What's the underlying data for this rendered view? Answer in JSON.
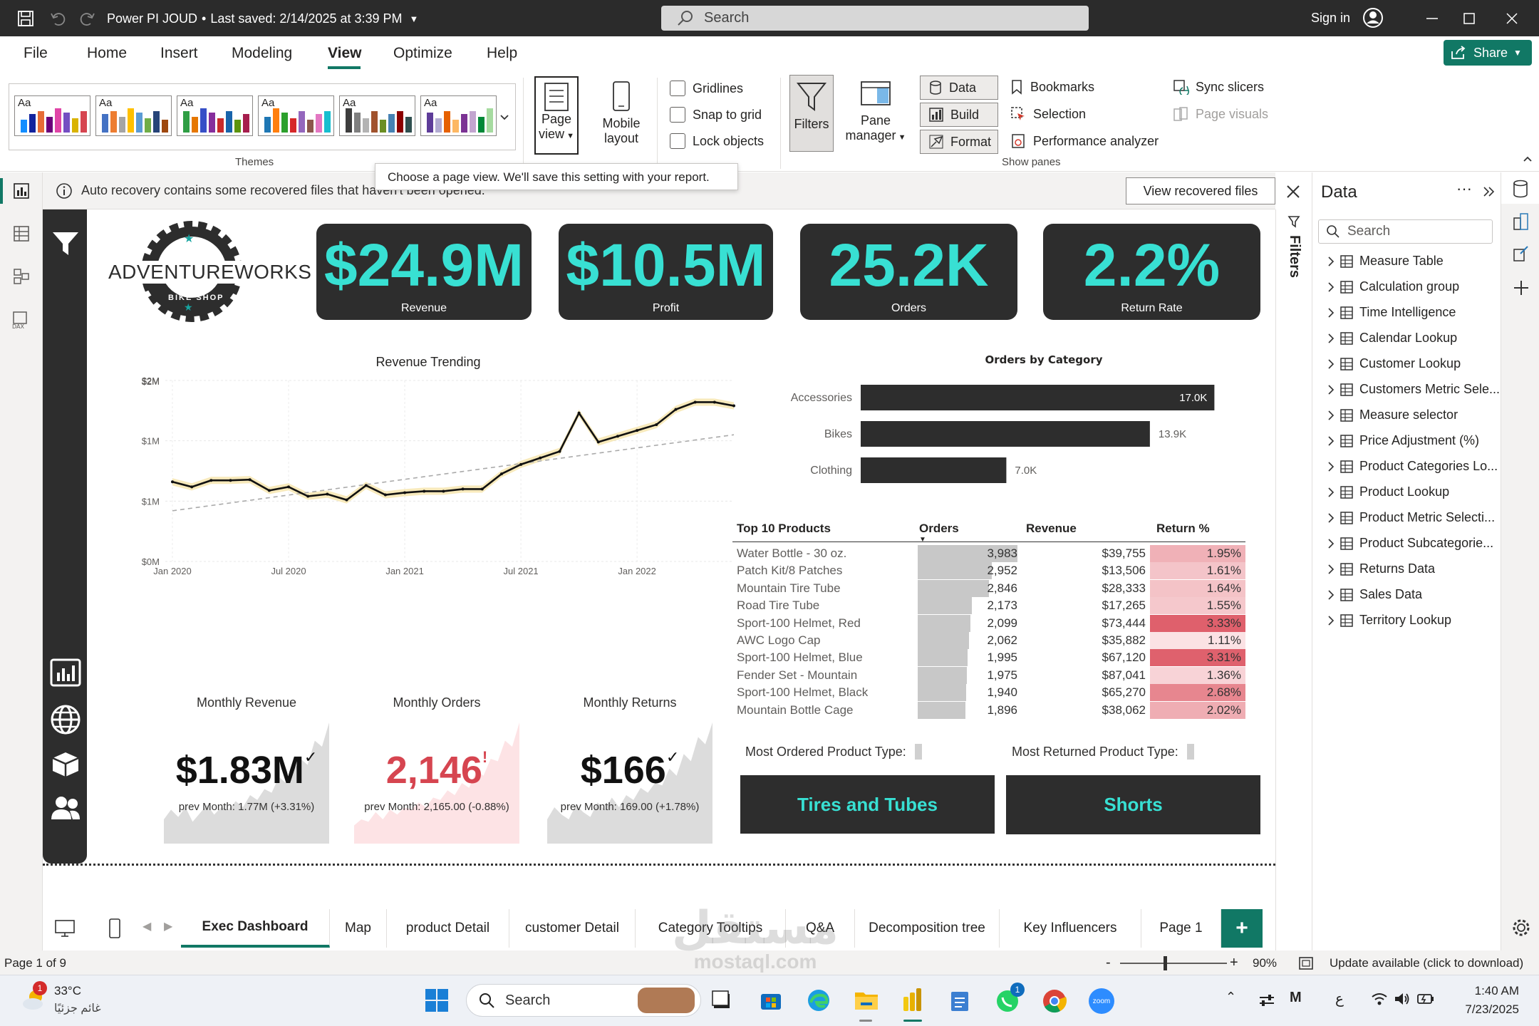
{
  "titlebar": {
    "doc_title": "Power PI JOUD",
    "saved_text": "Last saved: 2/14/2025 at 3:39 PM",
    "search_placeholder": "Search",
    "sign_in": "Sign in"
  },
  "ribbon": {
    "tabs": [
      "File",
      "Home",
      "Insert",
      "Modeling",
      "View",
      "Optimize",
      "Help"
    ],
    "active_tab": "View",
    "share": "Share",
    "theme_sample": "Aa",
    "themes_label": "Themes",
    "page_view_line1": "Page",
    "page_view_line2": "view",
    "mobile_layout_line1": "Mobile",
    "mobile_layout_line2": "layout",
    "gridlines": "Gridlines",
    "snap_to_grid": "Snap to grid",
    "lock_objects": "Lock objects",
    "filters": "Filters",
    "pane_manager_line1": "Pane",
    "pane_manager_line2": "manager",
    "data": "Data",
    "build": "Build",
    "format": "Format",
    "bookmarks": "Bookmarks",
    "selection": "Selection",
    "performance_analyzer": "Performance analyzer",
    "sync_slicers": "Sync slicers",
    "page_visuals": "Page visuals",
    "show_panes_label": "Show panes",
    "tooltip": "Choose a page view. We'll save this setting with your report."
  },
  "notification": {
    "text": "Auto recovery contains some recovered files that haven't been opened.",
    "button": "View recovered files"
  },
  "report": {
    "logo_text": "ADVENTUREWORKS",
    "logo_sub": "BIKE SHOP",
    "kpis": [
      {
        "value": "$24.9M",
        "label": "Revenue"
      },
      {
        "value": "$10.5M",
        "label": "Profit"
      },
      {
        "value": "25.2K",
        "label": "Orders"
      },
      {
        "value": "2.2%",
        "label": "Return Rate"
      }
    ],
    "monthly": [
      {
        "title": "Monthly Revenue",
        "value": "$1.83M",
        "mark": "✓",
        "prev": "prev Month: 1.77M (+3.31%)",
        "color": "#111111"
      },
      {
        "title": "Monthly Orders",
        "value": "2,146",
        "mark": "!",
        "prev": "prev Month: 2,165.00 (-0.88%)",
        "color": "#d64550"
      },
      {
        "title": "Monthly Returns",
        "value": "$166",
        "mark": "✓",
        "prev": "prev Month: 169.00 (+1.78%)",
        "color": "#111111"
      }
    ],
    "filters_label": "Filters",
    "table": {
      "headers": [
        "Top 10 Products",
        "Orders",
        "Revenue",
        "Return %"
      ],
      "rows": [
        {
          "product": "Water Bottle - 30 oz.",
          "orders": 3983,
          "orders_text": "3,983",
          "revenue": "$39,755",
          "ret": 1.95,
          "ret_text": "1.95%"
        },
        {
          "product": "Patch Kit/8 Patches",
          "orders": 2952,
          "orders_text": "2,952",
          "revenue": "$13,506",
          "ret": 1.61,
          "ret_text": "1.61%"
        },
        {
          "product": "Mountain Tire Tube",
          "orders": 2846,
          "orders_text": "2,846",
          "revenue": "$28,333",
          "ret": 1.64,
          "ret_text": "1.64%"
        },
        {
          "product": "Road Tire Tube",
          "orders": 2173,
          "orders_text": "2,173",
          "revenue": "$17,265",
          "ret": 1.55,
          "ret_text": "1.55%"
        },
        {
          "product": "Sport-100 Helmet, Red",
          "orders": 2099,
          "orders_text": "2,099",
          "revenue": "$73,444",
          "ret": 3.33,
          "ret_text": "3.33%"
        },
        {
          "product": "AWC Logo Cap",
          "orders": 2062,
          "orders_text": "2,062",
          "revenue": "$35,882",
          "ret": 1.11,
          "ret_text": "1.11%"
        },
        {
          "product": "Sport-100 Helmet, Blue",
          "orders": 1995,
          "orders_text": "1,995",
          "revenue": "$67,120",
          "ret": 3.31,
          "ret_text": "3.31%"
        },
        {
          "product": "Fender Set - Mountain",
          "orders": 1975,
          "orders_text": "1,975",
          "revenue": "$87,041",
          "ret": 1.36,
          "ret_text": "1.36%"
        },
        {
          "product": "Sport-100 Helmet, Black",
          "orders": 1940,
          "orders_text": "1,940",
          "revenue": "$65,270",
          "ret": 2.68,
          "ret_text": "2.68%"
        },
        {
          "product": "Mountain Bottle Cage",
          "orders": 1896,
          "orders_text": "1,896",
          "revenue": "$38,062",
          "ret": 2.02,
          "ret_text": "2.02%"
        }
      ]
    },
    "most_ordered_label": "Most Ordered Product Type:",
    "most_ordered_value": "Tires and Tubes",
    "most_returned_label": "Most Returned Product Type:",
    "most_returned_value": "Shorts",
    "accent": "#38e0d3",
    "dark_card": "#2d2d2d"
  },
  "chart_data": [
    {
      "type": "line",
      "title": "Revenue Trending",
      "x": [
        "2020-01",
        "2020-02",
        "2020-03",
        "2020-04",
        "2020-05",
        "2020-06",
        "2020-07",
        "2020-08",
        "2020-09",
        "2020-10",
        "2020-11",
        "2020-12",
        "2021-01",
        "2021-02",
        "2021-03",
        "2021-04",
        "2021-05",
        "2021-06",
        "2021-07",
        "2021-08",
        "2021-09",
        "2021-10",
        "2021-11",
        "2021-12",
        "2022-01",
        "2022-02",
        "2022-03",
        "2022-04",
        "2022-05",
        "2022-06"
      ],
      "series": [
        {
          "values": [
            1.1,
            1.03,
            1.12,
            1.12,
            1.13,
            0.98,
            1.03,
            0.9,
            0.93,
            0.85,
            1.05,
            0.92,
            0.95,
            0.97,
            0.97,
            1.0,
            1.0,
            1.21,
            1.34,
            1.43,
            1.52,
            2.05,
            1.65,
            1.73,
            1.81,
            1.89,
            2.1,
            2.2,
            2.2,
            2.15
          ]
        }
      ],
      "xticks": [
        "Jan 2020",
        "Jul 2020",
        "Jan 2021",
        "Jul 2021",
        "Jan 2022"
      ],
      "yticks": [
        "$0M",
        "$1M",
        "$1M",
        "$2M",
        "$2M"
      ],
      "ylim": [
        0,
        2.5
      ],
      "trend": true,
      "grid": true
    },
    {
      "type": "bar",
      "orientation": "horizontal",
      "title": "Orders by Category",
      "categories": [
        "Accessories",
        "Bikes",
        "Clothing"
      ],
      "values": [
        17.0,
        13.9,
        7.0
      ],
      "labels": [
        "17.0K",
        "13.9K",
        "7.0K"
      ],
      "xlim": [
        0,
        20
      ]
    }
  ],
  "data_pane": {
    "title": "Data",
    "search_placeholder": "Search",
    "items": [
      "Measure Table",
      "Calculation group",
      "Time Intelligence",
      "Calendar Lookup",
      "Customer Lookup",
      "Customers Metric Sele...",
      "Measure selector",
      "Price Adjustment (%)",
      "Product Categories Lo...",
      "Product Lookup",
      "Product Metric Selecti...",
      "Product Subcategorie...",
      "Returns Data",
      "Sales Data",
      "Territory Lookup"
    ]
  },
  "page_tabs": {
    "tabs": [
      "Exec Dashboard",
      "Map",
      "product Detail",
      "customer Detail",
      "Category Tooltips",
      "Q&A",
      "Decomposition tree",
      "Key Influencers",
      "Page 1"
    ],
    "active": "Exec Dashboard",
    "add": "+"
  },
  "status": {
    "page": "Page 1 of 9",
    "zoom_minus": "-",
    "zoom_plus": "+",
    "zoom": "90%",
    "update": "Update available (click to download)"
  },
  "taskbar": {
    "weather_temp": "33°C",
    "weather_desc": "غائم جزئيًا",
    "weather_badge": "1",
    "search": "Search",
    "time": "1:40 AM",
    "date": "7/23/2025",
    "lang": "ع",
    "whatsapp_badge": "1",
    "zoom_app": "zoom"
  },
  "watermark": {
    "line1": "مستقل",
    "line2": "mostaql.com"
  }
}
